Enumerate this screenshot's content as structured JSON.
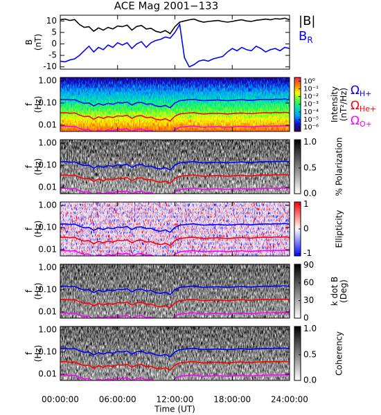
{
  "chart_data": [
    {
      "type": "line",
      "title": "ACE Mag 2001−133",
      "ylabel": [
        "B",
        "(nT)"
      ],
      "x": [
        0,
        0.5,
        1,
        1.5,
        2,
        2.5,
        3,
        3.5,
        4,
        4.5,
        5,
        5.5,
        6,
        6.5,
        7,
        7.5,
        8,
        8.5,
        9,
        9.5,
        10,
        10.5,
        11,
        11.5,
        12,
        12.5,
        13,
        13.5,
        14,
        14.5,
        15,
        15.5,
        16,
        16.5,
        17,
        17.5,
        18,
        18.5,
        19,
        19.5,
        20,
        20.5,
        21,
        21.5,
        22,
        22.5,
        23,
        23.5,
        24
      ],
      "xlim": [
        0,
        24
      ],
      "xticks": [
        0,
        6,
        12,
        18,
        24
      ],
      "ylim": [
        -11,
        12.5
      ],
      "yticks": [
        -10,
        -5,
        0,
        5,
        10
      ],
      "series": [
        {
          "name": "|B|",
          "color": "#000000",
          "values": [
            10.5,
            10.8,
            10.2,
            10.6,
            8.5,
            7.2,
            7.5,
            5.5,
            7.0,
            6.0,
            7.2,
            6.5,
            7.8,
            7.5,
            8.2,
            6.0,
            7.6,
            8.0,
            6.5,
            6.8,
            5.5,
            5.0,
            5.8,
            4.5,
            7.5,
            9.5,
            10.0,
            10.5,
            10.8,
            10.0,
            9.5,
            9.8,
            10.0,
            10.2,
            9.8,
            9.5,
            9.8,
            10.2,
            10.5,
            10.0,
            9.8,
            10.3,
            10.5,
            10.8,
            10.5,
            11.0,
            10.8,
            11.2,
            10.5
          ]
        },
        {
          "name": "B",
          "sub": "R",
          "color": "#0000ff",
          "values": [
            -7.5,
            -7.8,
            -7.0,
            -6.5,
            -5.0,
            -3.0,
            -1.0,
            -3.5,
            -1.5,
            -2.5,
            -0.5,
            -1.5,
            0.5,
            -0.5,
            0.5,
            -2.0,
            0.0,
            1.0,
            -1.5,
            0.5,
            1.5,
            2.0,
            3.0,
            2.5,
            5.0,
            8.5,
            -6.0,
            -10.0,
            -9.0,
            -7.5,
            -7.0,
            -7.5,
            -6.5,
            -6.0,
            -5.5,
            -3.5,
            -2.0,
            -3.0,
            -1.5,
            -2.5,
            -3.0,
            -1.0,
            -2.0,
            -3.5,
            -2.5,
            -2.0,
            -3.0,
            -1.5,
            -2.0
          ]
        }
      ]
    },
    {
      "type": "spectrogram",
      "ylabel": [
        "f",
        "(Hz)"
      ],
      "xlabel": "Time (UT)",
      "ylog": true,
      "x": [
        0,
        0.5,
        1,
        1.5,
        2,
        2.5,
        3,
        3.5,
        4,
        4.5,
        5,
        5.5,
        6,
        6.5,
        7,
        7.5,
        8,
        8.5,
        9,
        9.5,
        10,
        10.5,
        11,
        11.5,
        12,
        12.5,
        13,
        13.5,
        14,
        14.5,
        15,
        15.5,
        16,
        16.5,
        17,
        17.5,
        18,
        18.5,
        19,
        19.5,
        20,
        20.5,
        21,
        21.5,
        22,
        22.5,
        23,
        23.5,
        24
      ],
      "xlim": [
        0,
        24
      ],
      "xticks": [
        {
          "value": 0,
          "label": "00:00:00"
        },
        {
          "value": 6,
          "label": "06:00:00"
        },
        {
          "value": 12,
          "label": "12:00:00"
        },
        {
          "value": 18,
          "label": "18:00:00"
        },
        {
          "value": 24,
          "label": "24:00:00"
        }
      ],
      "ylim": [
        0.0052,
        1.43
      ],
      "yticks": [
        {
          "value": 1,
          "label": "1.00"
        },
        {
          "value": 0.1,
          "label": "0.10"
        },
        0.01
      ],
      "series": [
        {
          "name": "Ω",
          "sub": "H+",
          "color": "#0000ff",
          "values": [
            0.142,
            0.146,
            0.138,
            0.143,
            0.115,
            0.097,
            0.101,
            0.074,
            0.095,
            0.081,
            0.097,
            0.088,
            0.105,
            0.101,
            0.111,
            0.081,
            0.103,
            0.108,
            0.088,
            0.092,
            0.074,
            0.068,
            0.078,
            0.061,
            0.101,
            0.128,
            0.135,
            0.142,
            0.146,
            0.135,
            0.128,
            0.132,
            0.135,
            0.138,
            0.132,
            0.128,
            0.132,
            0.138,
            0.142,
            0.135,
            0.132,
            0.139,
            0.142,
            0.146,
            0.142,
            0.149,
            0.146,
            0.151,
            0.142
          ]
        },
        {
          "name": "Ω",
          "sub": "He+",
          "color": "#ff0000",
          "values": [
            0.0355,
            0.0365,
            0.0345,
            0.0358,
            0.0288,
            0.0243,
            0.0253,
            0.0185,
            0.0238,
            0.0203,
            0.0243,
            0.022,
            0.0263,
            0.0253,
            0.0278,
            0.0203,
            0.0258,
            0.027,
            0.022,
            0.023,
            0.0185,
            0.017,
            0.0195,
            0.0153,
            0.0253,
            0.032,
            0.0338,
            0.0355,
            0.0365,
            0.0338,
            0.032,
            0.033,
            0.0338,
            0.0345,
            0.033,
            0.032,
            0.033,
            0.0345,
            0.0355,
            0.0338,
            0.033,
            0.0348,
            0.0355,
            0.0365,
            0.0355,
            0.0373,
            0.0365,
            0.0378,
            0.0355
          ]
        },
        {
          "name": "Ω",
          "sub": "O+",
          "color": "#ff00ff",
          "values": [
            0.0089,
            0.0091,
            0.0086,
            0.0089,
            0.0072,
            0.0061,
            0.0063,
            0.0046,
            0.0059,
            0.0051,
            0.0061,
            0.0055,
            0.0066,
            0.0063,
            0.0069,
            0.0051,
            0.0064,
            0.0068,
            0.0055,
            0.0058,
            0.0046,
            0.0043,
            0.0049,
            0.0038,
            0.0063,
            0.008,
            0.0084,
            0.0089,
            0.0091,
            0.0084,
            0.008,
            0.0083,
            0.0084,
            0.0086,
            0.0083,
            0.008,
            0.0083,
            0.0086,
            0.0089,
            0.0084,
            0.0083,
            0.0087,
            0.0089,
            0.0091,
            0.0089,
            0.0093,
            0.0091,
            0.0094,
            0.0089
          ]
        }
      ],
      "panels": [
        {
          "colorbar": {
            "label": [
              "Intensity",
              "(nT²/Hz)"
            ],
            "log": true,
            "lim": [
              3e-07,
              3
            ],
            "colors": [
              "#2a0050",
              "#1010d0",
              "#00a0ff",
              "#00e0b0",
              "#40ff40",
              "#ffff00",
              "#ff8000",
              "#ff2050"
            ],
            "ticks": [
              {
                "value": 1,
                "label": "10⁰"
              },
              {
                "value": 0.1,
                "label": "10⁻¹"
              },
              {
                "value": 0.01,
                "label": "10⁻²"
              },
              {
                "value": 0.001,
                "label": "10⁻³"
              },
              {
                "value": 0.0001,
                "label": "10⁻⁴"
              },
              {
                "value": 1e-05,
                "label": "10⁻⁵"
              },
              {
                "value": 1e-06,
                "label": "10⁻⁶"
              }
            ]
          }
        },
        {
          "colorbar": {
            "label": [
              "% Polarization"
            ],
            "lim": [
              0,
              1.05
            ],
            "colors": [
              "#ffffff",
              "#000000"
            ],
            "ticks": [
              {
                "value": 0,
                "label": "0.0"
              },
              0.5,
              {
                "value": 1,
                "label": "1.0"
              }
            ]
          }
        },
        {
          "colorbar": {
            "label": [
              "Ellipticity"
            ],
            "lim": [
              -1.1,
              1.1
            ],
            "colors": [
              "#0000ff",
              "#ffffff",
              "#ff0000"
            ],
            "ticks": [
              1,
              0,
              -1
            ]
          }
        },
        {
          "colorbar": {
            "label": [
              "k dot B",
              "(Deg)"
            ],
            "lim": [
              0,
              92
            ],
            "colors": [
              "#ffffff",
              "#000000"
            ],
            "ticks": [
              90,
              60,
              30,
              0
            ]
          }
        },
        {
          "colorbar": {
            "label": [
              "Coherency"
            ],
            "lim": [
              0,
              1.05
            ],
            "colors": [
              "#ffffff",
              "#000000"
            ],
            "ticks": [
              {
                "value": 1,
                "label": "1.0"
              },
              0.5,
              {
                "value": 0,
                "label": "0.0"
              }
            ]
          }
        }
      ]
    }
  ]
}
